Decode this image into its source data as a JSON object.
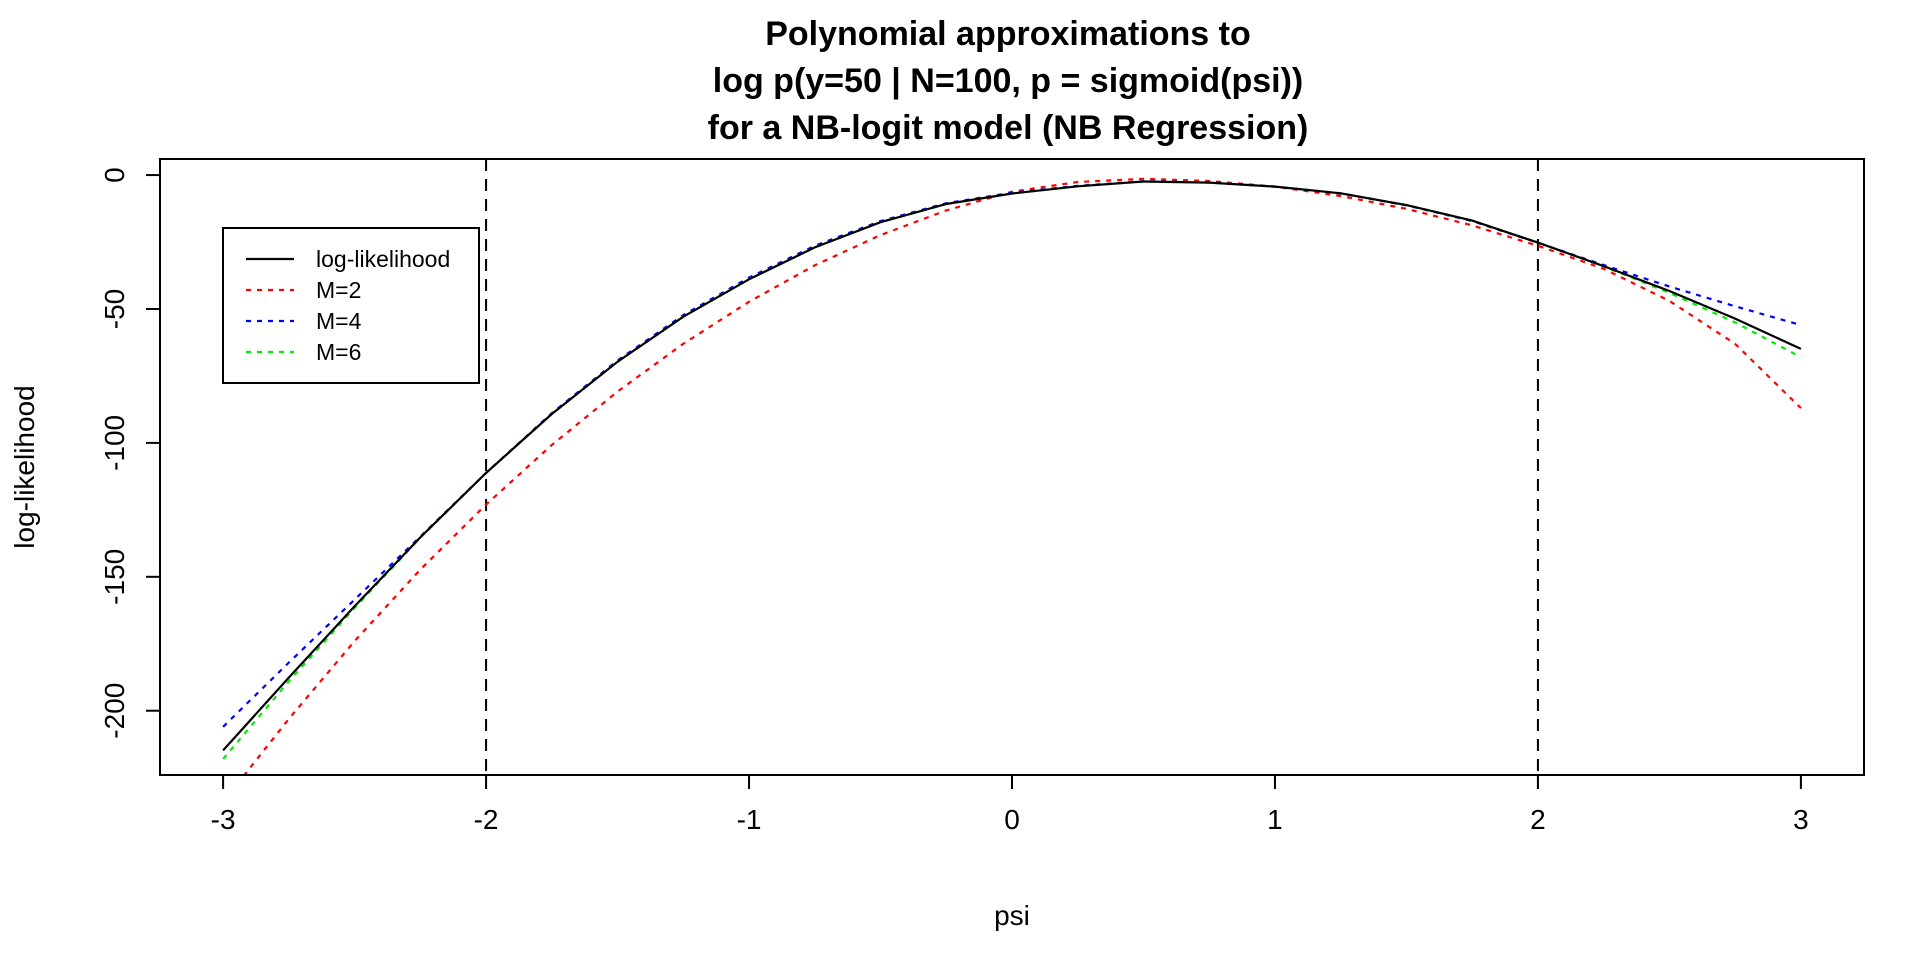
{
  "chart_data": {
    "type": "line",
    "title_lines": [
      "Polynomial approximations to",
      "log p(y=50 | N=100, p = sigmoid(psi))",
      "for a NB-logit model (NB Regression)"
    ],
    "xlabel": "psi",
    "ylabel": "log-likelihood",
    "xlim": [
      -3.24,
      3.24
    ],
    "ylim": [
      -224,
      6
    ],
    "x_ticks": [
      -3,
      -2,
      -1,
      0,
      1,
      2,
      3
    ],
    "y_ticks": [
      0,
      -50,
      -100,
      -150,
      -200
    ],
    "x_tick_labels": [
      "-3",
      "-2",
      "-1",
      "0",
      "1",
      "2",
      "3"
    ],
    "y_tick_labels": [
      "0",
      "-50",
      "-100",
      "-150",
      "-200"
    ],
    "vlines": [
      -2,
      2
    ],
    "vline_style": "dashed",
    "legend_position": "top-left",
    "grid": false,
    "x": [
      -3.0,
      -2.75,
      -2.5,
      -2.25,
      -2.0,
      -1.75,
      -1.5,
      -1.25,
      -1.0,
      -0.75,
      -0.5,
      -0.25,
      0.0,
      0.25,
      0.5,
      0.75,
      1.0,
      1.25,
      1.5,
      1.75,
      2.0,
      2.25,
      2.5,
      2.75,
      3.0
    ],
    "series": [
      {
        "name": "log-likelihood",
        "color": "#000000",
        "dash": "solid",
        "values": [
          -214.8,
          -187.6,
          -161.0,
          -135.3,
          -111.2,
          -89.2,
          -69.7,
          -52.9,
          -38.9,
          -27.0,
          -17.6,
          -10.8,
          -6.9,
          -4.2,
          -2.4,
          -2.8,
          -4.3,
          -6.8,
          -11.2,
          -17.0,
          -25.2,
          -34.0,
          -43.3,
          -53.6,
          -64.9
        ]
      },
      {
        "name": "M=2",
        "color": "#ff0000",
        "dash": "dotted",
        "values": [
          -234.0,
          -203.0,
          -174.0,
          -147.3,
          -123.0,
          -100.8,
          -80.8,
          -63.0,
          -47.3,
          -33.7,
          -22.4,
          -13.2,
          -6.2,
          -2.6,
          -1.4,
          -2.2,
          -4.3,
          -7.8,
          -12.6,
          -18.8,
          -26.4,
          -35.0,
          -47.0,
          -63.0,
          -87.0
        ]
      },
      {
        "name": "M=4",
        "color": "#0000ff",
        "dash": "dotted",
        "values": [
          -206.0,
          -182.0,
          -158.5,
          -135.0,
          -111.2,
          -88.9,
          -69.2,
          -52.3,
          -38.3,
          -26.4,
          -17.2,
          -10.5,
          -6.6,
          -4.0,
          -2.3,
          -2.7,
          -4.3,
          -6.9,
          -11.3,
          -17.2,
          -25.3,
          -33.6,
          -41.6,
          -49.0,
          -56.0
        ]
      },
      {
        "name": "M=6",
        "color": "#00ee00",
        "dash": "dotted",
        "values": [
          -218.0,
          -189.0,
          -161.6,
          -135.4,
          -111.2,
          -89.2,
          -69.7,
          -52.9,
          -38.9,
          -27.0,
          -17.6,
          -10.8,
          -6.9,
          -4.2,
          -2.4,
          -2.8,
          -4.3,
          -6.8,
          -11.2,
          -17.0,
          -25.2,
          -34.1,
          -44.0,
          -55.0,
          -68.0
        ]
      }
    ]
  }
}
